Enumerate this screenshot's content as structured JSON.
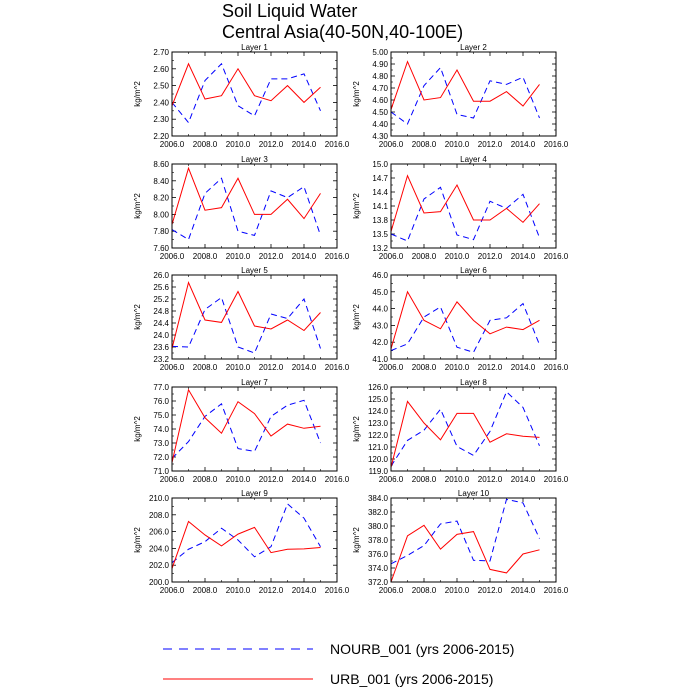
{
  "figure": {
    "title_line1": "Soil Liquid Water",
    "title_line2": "Central Asia(40-50N,40-100E)"
  },
  "legend": [
    {
      "label": "NOURB_001 (yrs 2006-2015)",
      "color": "#0000ff",
      "style": "dashed"
    },
    {
      "label": "URB_001 (yrs 2006-2015)",
      "color": "#ff0000",
      "style": "solid"
    }
  ],
  "chart_data": [
    {
      "type": "line",
      "title": "Layer 1",
      "ylabel": "kg/m^2",
      "xlim": [
        2006,
        2016
      ],
      "xticks": [
        "2006.0",
        "2008.0",
        "2010.0",
        "2012.0",
        "2014.0",
        "2016.0"
      ],
      "ylim": [
        2.2,
        2.7
      ],
      "yticks": [
        "2.20",
        "2.30",
        "2.40",
        "2.50",
        "2.60",
        "2.70"
      ],
      "x": [
        2006,
        2007,
        2008,
        2009,
        2010,
        2011,
        2012,
        2013,
        2014,
        2015
      ],
      "series": [
        {
          "name": "NOURB_001",
          "values": [
            2.4,
            2.28,
            2.53,
            2.63,
            2.38,
            2.32,
            2.54,
            2.54,
            2.57,
            2.35
          ]
        },
        {
          "name": "URB_001",
          "values": [
            2.38,
            2.63,
            2.42,
            2.44,
            2.6,
            2.44,
            2.41,
            2.5,
            2.4,
            2.49
          ]
        }
      ]
    },
    {
      "type": "line",
      "title": "Layer 2",
      "ylabel": "kg/m^2",
      "xlim": [
        2006,
        2016
      ],
      "xticks": [
        "2006.0",
        "2008.0",
        "2010.0",
        "2012.0",
        "2014.0",
        "2016.0"
      ],
      "ylim": [
        4.3,
        5.0
      ],
      "yticks": [
        "4.30",
        "4.40",
        "4.50",
        "4.60",
        "4.70",
        "4.80",
        "4.90",
        "5.00"
      ],
      "x": [
        2006,
        2007,
        2008,
        2009,
        2010,
        2011,
        2012,
        2013,
        2014,
        2015
      ],
      "series": [
        {
          "name": "NOURB_001",
          "values": [
            4.5,
            4.4,
            4.72,
            4.87,
            4.48,
            4.45,
            4.76,
            4.73,
            4.79,
            4.45
          ]
        },
        {
          "name": "URB_001",
          "values": [
            4.52,
            4.92,
            4.6,
            4.62,
            4.85,
            4.59,
            4.59,
            4.67,
            4.55,
            4.73
          ]
        }
      ]
    },
    {
      "type": "line",
      "title": "Layer 3",
      "ylabel": "kg/m^2",
      "xlim": [
        2006,
        2016
      ],
      "xticks": [
        "2006.0",
        "2008.0",
        "2010.0",
        "2012.0",
        "2014.0",
        "2016.0"
      ],
      "ylim": [
        7.6,
        8.6
      ],
      "yticks": [
        "7.60",
        "7.80",
        "8.00",
        "8.20",
        "8.40",
        "8.60"
      ],
      "x": [
        2006,
        2007,
        2008,
        2009,
        2010,
        2011,
        2012,
        2013,
        2014,
        2015
      ],
      "series": [
        {
          "name": "NOURB_001",
          "values": [
            7.82,
            7.7,
            8.25,
            8.43,
            7.8,
            7.75,
            8.28,
            8.2,
            8.33,
            7.75
          ]
        },
        {
          "name": "URB_001",
          "values": [
            7.88,
            8.55,
            8.05,
            8.08,
            8.43,
            8.0,
            8.0,
            8.18,
            7.95,
            8.25
          ]
        }
      ]
    },
    {
      "type": "line",
      "title": "Layer 4",
      "ylabel": "kg/m^2",
      "xlim": [
        2006,
        2016
      ],
      "xticks": [
        "2006.0",
        "2008.0",
        "2010.0",
        "2012.0",
        "2014.0",
        "2016.0"
      ],
      "ylim": [
        13.2,
        15.0
      ],
      "yticks": [
        "13.2",
        "13.5",
        "13.8",
        "14.1",
        "14.4",
        "14.7",
        "15.0"
      ],
      "x": [
        2006,
        2007,
        2008,
        2009,
        2010,
        2011,
        2012,
        2013,
        2014,
        2015
      ],
      "series": [
        {
          "name": "NOURB_001",
          "values": [
            13.5,
            13.35,
            14.25,
            14.5,
            13.48,
            13.38,
            14.2,
            14.05,
            14.35,
            13.42
          ]
        },
        {
          "name": "URB_001",
          "values": [
            13.55,
            14.75,
            13.95,
            13.98,
            14.55,
            13.8,
            13.8,
            14.05,
            13.75,
            14.15
          ]
        }
      ]
    },
    {
      "type": "line",
      "title": "Layer 5",
      "ylabel": "kg/m^2",
      "xlim": [
        2006,
        2016
      ],
      "xticks": [
        "2006.0",
        "2008.0",
        "2010.0",
        "2012.0",
        "2014.0",
        "2016.0"
      ],
      "ylim": [
        23.2,
        26.0
      ],
      "yticks": [
        "23.2",
        "23.6",
        "24.0",
        "24.4",
        "24.8",
        "25.2",
        "25.6",
        "26.0"
      ],
      "x": [
        2006,
        2007,
        2008,
        2009,
        2010,
        2011,
        2012,
        2013,
        2014,
        2015
      ],
      "series": [
        {
          "name": "NOURB_001",
          "values": [
            23.62,
            23.6,
            24.85,
            25.25,
            23.6,
            23.4,
            24.7,
            24.55,
            25.2,
            23.55
          ]
        },
        {
          "name": "URB_001",
          "values": [
            23.55,
            25.75,
            24.5,
            24.42,
            25.45,
            24.3,
            24.2,
            24.5,
            24.15,
            24.75
          ]
        }
      ]
    },
    {
      "type": "line",
      "title": "Layer 6",
      "ylabel": "kg/m^2",
      "xlim": [
        2006,
        2016
      ],
      "xticks": [
        "2006.0",
        "2008.0",
        "2010.0",
        "2012.0",
        "2014.0",
        "2016.0"
      ],
      "ylim": [
        41.0,
        46.0
      ],
      "yticks": [
        "41.0",
        "42.0",
        "43.0",
        "44.0",
        "45.0",
        "46.0"
      ],
      "x": [
        2006,
        2007,
        2008,
        2009,
        2010,
        2011,
        2012,
        2013,
        2014,
        2015
      ],
      "series": [
        {
          "name": "NOURB_001",
          "values": [
            41.5,
            41.9,
            43.5,
            44.1,
            41.7,
            41.4,
            43.3,
            43.45,
            44.3,
            41.85
          ]
        },
        {
          "name": "URB_001",
          "values": [
            41.6,
            45.0,
            43.3,
            42.8,
            44.4,
            43.3,
            42.5,
            42.9,
            42.75,
            43.3
          ]
        }
      ]
    },
    {
      "type": "line",
      "title": "Layer 7",
      "ylabel": "kg/m^2",
      "xlim": [
        2006,
        2016
      ],
      "xticks": [
        "2006.0",
        "2008.0",
        "2010.0",
        "2012.0",
        "2014.0",
        "2016.0"
      ],
      "ylim": [
        71.0,
        77.0
      ],
      "yticks": [
        "71.0",
        "72.0",
        "73.0",
        "74.0",
        "75.0",
        "76.0",
        "77.0"
      ],
      "x": [
        2006,
        2007,
        2008,
        2009,
        2010,
        2011,
        2012,
        2013,
        2014,
        2015
      ],
      "series": [
        {
          "name": "NOURB_001",
          "values": [
            71.9,
            73.1,
            74.9,
            75.8,
            72.6,
            72.4,
            74.9,
            75.7,
            76.05,
            73.0
          ]
        },
        {
          "name": "URB_001",
          "values": [
            71.6,
            76.8,
            74.8,
            73.7,
            75.95,
            75.1,
            73.5,
            74.35,
            74.05,
            74.2
          ]
        }
      ]
    },
    {
      "type": "line",
      "title": "Layer 8",
      "ylabel": "kg/m^2",
      "xlim": [
        2006,
        2016
      ],
      "xticks": [
        "2006.0",
        "2008.0",
        "2010.0",
        "2012.0",
        "2014.0",
        "2016.0"
      ],
      "ylim": [
        119.0,
        126.0
      ],
      "yticks": [
        "119.0",
        "120.0",
        "121.0",
        "122.0",
        "123.0",
        "124.0",
        "125.0",
        "126.0"
      ],
      "x": [
        2006,
        2007,
        2008,
        2009,
        2010,
        2011,
        2012,
        2013,
        2014,
        2015
      ],
      "series": [
        {
          "name": "NOURB_001",
          "values": [
            119.4,
            121.55,
            122.4,
            124.15,
            121.05,
            120.3,
            122.3,
            125.6,
            124.3,
            121.1
          ]
        },
        {
          "name": "URB_001",
          "values": [
            119.3,
            124.8,
            123.0,
            121.6,
            123.8,
            123.8,
            121.4,
            122.1,
            121.9,
            121.8
          ]
        }
      ]
    },
    {
      "type": "line",
      "title": "Layer 9",
      "ylabel": "kg/m^2",
      "xlim": [
        2006,
        2016
      ],
      "xticks": [
        "2006.0",
        "2008.0",
        "2010.0",
        "2012.0",
        "2014.0",
        "2016.0"
      ],
      "ylim": [
        200.0,
        210.0
      ],
      "yticks": [
        "200.0",
        "202.0",
        "204.0",
        "206.0",
        "208.0",
        "210.0"
      ],
      "x": [
        2006,
        2007,
        2008,
        2009,
        2010,
        2011,
        2012,
        2013,
        2014,
        2015
      ],
      "series": [
        {
          "name": "NOURB_001",
          "values": [
            202.3,
            203.9,
            204.8,
            206.4,
            205.0,
            203.0,
            204.2,
            209.3,
            207.6,
            204.2
          ]
        },
        {
          "name": "URB_001",
          "values": [
            201.6,
            207.2,
            205.6,
            204.3,
            205.7,
            206.5,
            203.5,
            203.9,
            203.95,
            204.1
          ]
        }
      ]
    },
    {
      "type": "line",
      "title": "Layer 10",
      "ylabel": "kg/m^2",
      "xlim": [
        2006,
        2016
      ],
      "xticks": [
        "2006.0",
        "2008.0",
        "2010.0",
        "2012.0",
        "2014.0",
        "2016.0"
      ],
      "ylim": [
        372.0,
        384.0
      ],
      "yticks": [
        "372.0",
        "374.0",
        "376.0",
        "378.0",
        "380.0",
        "382.0",
        "384.0"
      ],
      "x": [
        2006,
        2007,
        2008,
        2009,
        2010,
        2011,
        2012,
        2013,
        2014,
        2015
      ],
      "series": [
        {
          "name": "NOURB_001",
          "values": [
            374.6,
            375.8,
            377.2,
            380.3,
            380.7,
            375.1,
            375.0,
            383.8,
            383.3,
            378.2
          ]
        },
        {
          "name": "URB_001",
          "values": [
            372.0,
            378.6,
            380.1,
            376.7,
            378.8,
            379.2,
            373.8,
            373.3,
            376.0,
            376.6
          ]
        }
      ]
    }
  ]
}
